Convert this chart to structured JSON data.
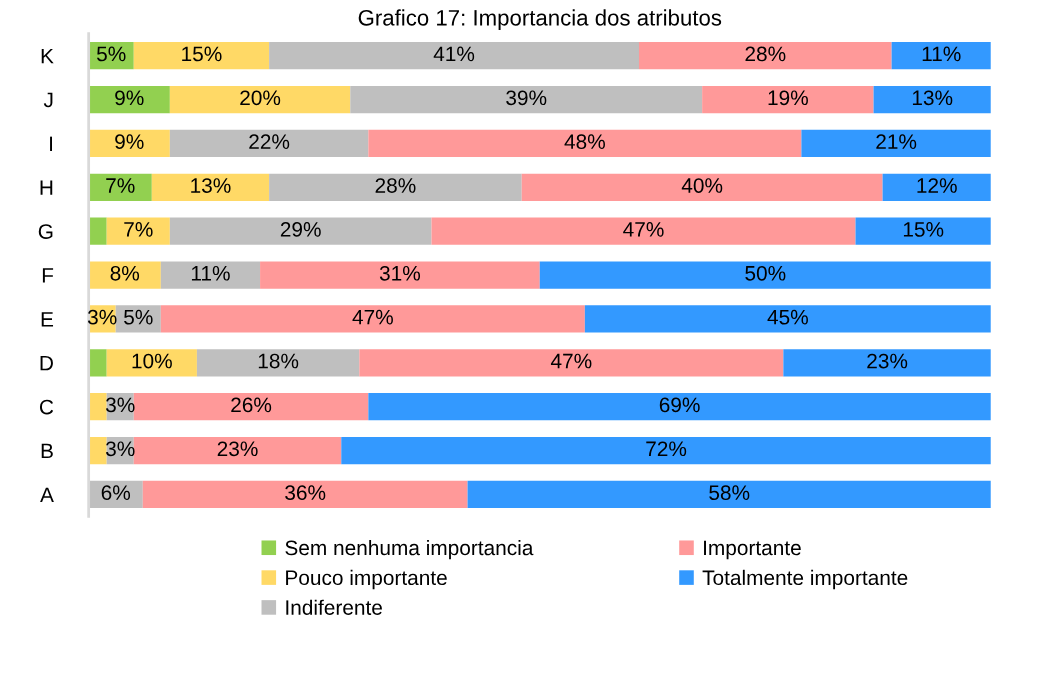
{
  "chart_data": {
    "type": "bar",
    "orientation": "horizontal",
    "stacked": true,
    "title": "Grafico 17: Importancia dos atributos",
    "categories": [
      "K",
      "J",
      "I",
      "H",
      "G",
      "F",
      "E",
      "D",
      "C",
      "B",
      "A"
    ],
    "xlim": [
      0,
      100
    ],
    "tick_labels": "y",
    "grid": false,
    "legend": "bottom",
    "series": [
      {
        "name": "Sem nenhuma importancia",
        "color": "#92d050",
        "values": [
          5,
          9,
          null,
          7,
          2,
          null,
          null,
          2,
          null,
          null,
          null
        ],
        "value_labels": [
          "5%",
          "9%",
          null,
          "7%",
          null,
          null,
          null,
          null,
          null,
          null,
          null
        ]
      },
      {
        "name": "Pouco importante",
        "color": "#ffd966",
        "values": [
          15,
          20,
          9,
          13,
          7,
          8,
          3,
          10,
          2,
          2,
          null
        ],
        "value_labels": [
          "15%",
          "20%",
          "9%",
          "13%",
          "7%",
          "8%",
          "3%",
          "10%",
          null,
          null,
          null
        ]
      },
      {
        "name": "Indiferente",
        "color": "#bfbfbf",
        "values": [
          41,
          39,
          22,
          28,
          29,
          11,
          5,
          18,
          3,
          3,
          6
        ],
        "value_labels": [
          "41%",
          "39%",
          "22%",
          "28%",
          "29%",
          "11%",
          "5%",
          "18%",
          "3%",
          "3%",
          "6%"
        ]
      },
      {
        "name": "Importante",
        "color": "#ff9999",
        "values": [
          28,
          19,
          48,
          40,
          47,
          31,
          47,
          47,
          26,
          23,
          36
        ],
        "value_labels": [
          "28%",
          "19%",
          "48%",
          "40%",
          "47%",
          "31%",
          "47%",
          "47%",
          "26%",
          "23%",
          "36%"
        ]
      },
      {
        "name": "Totalmente importante",
        "color": "#3399ff",
        "values": [
          11,
          13,
          21,
          12,
          15,
          50,
          45,
          23,
          69,
          72,
          58
        ],
        "value_labels": [
          "11%",
          "13%",
          "21%",
          "12%",
          "15%",
          "50%",
          "45%",
          "23%",
          "69%",
          "72%",
          "58%"
        ]
      }
    ]
  }
}
